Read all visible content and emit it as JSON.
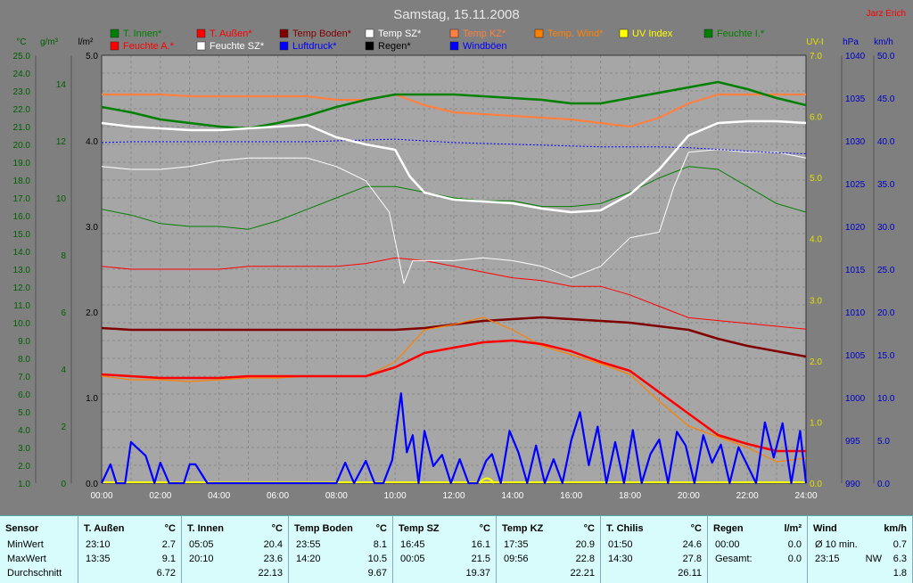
{
  "chart_data": {
    "type": "line",
    "title": "Samstag, 15.11.2008",
    "author": "Jarz Erich",
    "x_ticks": [
      "00:00",
      "02:00",
      "04:00",
      "06:00",
      "08:00",
      "10:00",
      "12:00",
      "14:00",
      "16:00",
      "18:00",
      "20:00",
      "22:00",
      "24:00"
    ],
    "x_range": [
      0,
      24
    ],
    "left_axes": [
      {
        "unit": "°C",
        "color": "#006000",
        "range": [
          1.0,
          25.0
        ],
        "ticks": [
          "1.0",
          "2.0",
          "3.0",
          "4.0",
          "5.0",
          "6.0",
          "7.0",
          "8.0",
          "9.0",
          "10.0",
          "11.0",
          "12.0",
          "13.0",
          "14.0",
          "15.0",
          "16.0",
          "17.0",
          "18.0",
          "19.0",
          "20.0",
          "21.0",
          "22.0",
          "23.0",
          "24.0",
          "25.0"
        ]
      },
      {
        "unit": "g/m³",
        "color": "#006000",
        "range": [
          0,
          15
        ],
        "ticks": [
          "0",
          "2",
          "4",
          "6",
          "8",
          "10",
          "12",
          "14"
        ]
      },
      {
        "unit": "l/m²",
        "color": "#000000",
        "range": [
          0.0,
          5.0
        ],
        "ticks": [
          "0.0",
          "1.0",
          "2.0",
          "3.0",
          "4.0",
          "5.0"
        ]
      }
    ],
    "right_axes": [
      {
        "unit": "UV-I",
        "color": "#e0e000",
        "range": [
          0.0,
          7.0
        ],
        "ticks": [
          "0.0",
          "1.0",
          "2.0",
          "3.0",
          "4.0",
          "5.0",
          "6.0",
          "7.0"
        ]
      },
      {
        "unit": "hPa",
        "color": "#0000c8",
        "range": [
          990,
          1040
        ],
        "ticks": [
          "990",
          "995",
          "1000",
          "1005",
          "1010",
          "1015",
          "1020",
          "1025",
          "1030",
          "1035",
          "1040"
        ]
      },
      {
        "unit": "km/h",
        "color": "#0000c8",
        "range": [
          0.0,
          50.0
        ],
        "ticks": [
          "0.0",
          "5.0",
          "10.0",
          "15.0",
          "20.0",
          "25.0",
          "30.0",
          "35.0",
          "40.0",
          "45.0",
          "50.0"
        ]
      }
    ],
    "legend": [
      {
        "name": "T. Innen*",
        "color": "#008000"
      },
      {
        "name": "T. Außen*",
        "color": "#ff0000"
      },
      {
        "name": "Temp Boden*",
        "color": "#800000"
      },
      {
        "name": "Temp SZ*",
        "color": "#ffffff"
      },
      {
        "name": "Temp KZ*",
        "color": "#ff8040"
      },
      {
        "name": "Temp. Wind*",
        "color": "#ff8000"
      },
      {
        "name": "UV Index",
        "color": "#ffff00"
      },
      {
        "name": "Feuchte I.*",
        "color": "#008000"
      },
      {
        "name": "Feuchte A.*",
        "color": "#ff0000"
      },
      {
        "name": "Feuchte SZ*",
        "color": "#ffffff"
      },
      {
        "name": "Luftdruck*",
        "color": "#0000ff"
      },
      {
        "name": "Regen*",
        "color": "#000000"
      },
      {
        "name": "Windböen",
        "color": "#0000ff"
      }
    ],
    "series": [
      {
        "name": "T. Innen*",
        "axis": "temp",
        "color": "#008000",
        "width": 2.5,
        "x": [
          0,
          1,
          2,
          3,
          4,
          5,
          6,
          7,
          8,
          9,
          10,
          11,
          12,
          13,
          14,
          15,
          16,
          17,
          18,
          19,
          20,
          21,
          22,
          23,
          24
        ],
        "y": [
          22.1,
          21.8,
          21.4,
          21.2,
          21.0,
          20.9,
          21.2,
          21.6,
          22.1,
          22.5,
          22.8,
          22.8,
          22.8,
          22.7,
          22.6,
          22.5,
          22.3,
          22.3,
          22.6,
          22.9,
          23.2,
          23.5,
          23.1,
          22.6,
          22.2
        ]
      },
      {
        "name": "T. Außen*",
        "axis": "temp",
        "color": "#ff0000",
        "width": 2.5,
        "x": [
          0,
          1,
          2,
          3,
          4,
          5,
          6,
          7,
          8,
          9,
          10,
          11,
          12,
          13,
          14,
          15,
          16,
          17,
          18,
          19,
          20,
          21,
          22,
          23,
          24
        ],
        "y": [
          7.1,
          7.0,
          6.9,
          6.9,
          6.9,
          7.0,
          7.0,
          7.0,
          7.0,
          7.0,
          7.5,
          8.3,
          8.6,
          8.9,
          9.0,
          8.8,
          8.4,
          7.8,
          7.3,
          6.1,
          4.9,
          3.7,
          3.2,
          2.8,
          2.8
        ]
      },
      {
        "name": "Temp Boden*",
        "axis": "temp",
        "color": "#800000",
        "width": 2.5,
        "x": [
          0,
          1,
          2,
          3,
          4,
          5,
          6,
          7,
          8,
          9,
          10,
          11,
          12,
          13,
          14,
          15,
          16,
          17,
          18,
          19,
          20,
          21,
          22,
          23,
          24
        ],
        "y": [
          9.7,
          9.6,
          9.6,
          9.6,
          9.6,
          9.6,
          9.6,
          9.6,
          9.6,
          9.6,
          9.6,
          9.7,
          9.9,
          10.1,
          10.2,
          10.3,
          10.2,
          10.1,
          10.0,
          9.8,
          9.6,
          9.1,
          8.7,
          8.4,
          8.1
        ]
      },
      {
        "name": "Temp SZ*",
        "axis": "temp",
        "color": "#ffffff",
        "width": 2.5,
        "x": [
          0,
          1,
          2,
          3,
          4,
          5,
          6,
          7,
          8,
          9,
          10,
          10.5,
          11,
          12,
          13,
          14,
          15,
          16,
          17,
          18,
          19,
          20,
          21,
          22,
          23,
          24
        ],
        "y": [
          21.2,
          21.0,
          20.9,
          20.8,
          20.8,
          20.9,
          21.0,
          21.1,
          20.4,
          20.0,
          19.7,
          18.2,
          17.3,
          16.9,
          16.8,
          16.7,
          16.4,
          16.2,
          16.3,
          17.2,
          18.6,
          20.5,
          21.2,
          21.3,
          21.3,
          21.2
        ]
      },
      {
        "name": "Temp KZ*",
        "axis": "temp",
        "color": "#ff8040",
        "width": 2.2,
        "x": [
          0,
          1,
          2,
          3,
          4,
          5,
          6,
          7,
          8,
          9,
          10,
          11,
          12,
          13,
          14,
          15,
          16,
          17,
          18,
          19,
          20,
          21,
          22,
          23,
          24
        ],
        "y": [
          22.8,
          22.8,
          22.8,
          22.7,
          22.7,
          22.7,
          22.7,
          22.7,
          22.5,
          22.5,
          22.8,
          22.2,
          21.8,
          21.7,
          21.6,
          21.5,
          21.4,
          21.2,
          21.0,
          21.5,
          22.3,
          22.8,
          22.8,
          22.8,
          22.8
        ]
      },
      {
        "name": "Temp. Wind*",
        "axis": "temp",
        "color": "#ff8000",
        "width": 1.2,
        "x": [
          0,
          1,
          2,
          3,
          4,
          5,
          6,
          7,
          8,
          9,
          10,
          11,
          12,
          13,
          14,
          15,
          16,
          17,
          18,
          19,
          20,
          21,
          22,
          23,
          24
        ],
        "y": [
          7.0,
          6.8,
          6.8,
          6.7,
          6.8,
          6.9,
          6.9,
          7.0,
          7.0,
          7.0,
          7.8,
          9.6,
          9.9,
          10.3,
          9.6,
          8.7,
          8.2,
          7.7,
          7.1,
          5.6,
          4.2,
          3.6,
          3.0,
          2.2,
          2.4
        ]
      },
      {
        "name": "Feuchte I.*",
        "axis": "hum",
        "color": "#008000",
        "width": 1,
        "x": [
          0,
          1,
          2,
          3,
          4,
          5,
          6,
          7,
          8,
          9,
          10,
          11,
          12,
          13,
          14,
          15,
          16,
          17,
          18,
          19,
          20,
          21,
          22,
          23,
          24
        ],
        "y": [
          9.6,
          9.4,
          9.1,
          9.0,
          9.0,
          8.9,
          9.2,
          9.6,
          10.0,
          10.4,
          10.4,
          10.2,
          10.0,
          9.9,
          9.9,
          9.7,
          9.7,
          9.8,
          10.2,
          10.7,
          11.1,
          11.0,
          10.4,
          9.8,
          9.5
        ]
      },
      {
        "name": "Feuchte A.*",
        "axis": "hum",
        "color": "#ff0000",
        "width": 1,
        "x": [
          0,
          1,
          2,
          3,
          4,
          5,
          6,
          7,
          8,
          9,
          10,
          11,
          12,
          13,
          14,
          15,
          16,
          17,
          18,
          19,
          20,
          21,
          22,
          23,
          24
        ],
        "y": [
          7.6,
          7.5,
          7.5,
          7.5,
          7.5,
          7.6,
          7.6,
          7.6,
          7.6,
          7.7,
          7.9,
          7.8,
          7.6,
          7.4,
          7.2,
          7.1,
          6.9,
          6.9,
          6.6,
          6.2,
          5.8,
          5.7,
          5.6,
          5.5,
          5.4
        ]
      },
      {
        "name": "Feuchte SZ*",
        "axis": "hum",
        "color": "#ffffff",
        "width": 1,
        "x": [
          0,
          1,
          2,
          3,
          4,
          5,
          6,
          7,
          8,
          9,
          9.8,
          10.3,
          10.6,
          11,
          12,
          13,
          14,
          15,
          16,
          17,
          18,
          19,
          19.5,
          20,
          21,
          22,
          23,
          24
        ],
        "y": [
          11.1,
          11.0,
          11.0,
          11.1,
          11.3,
          11.4,
          11.4,
          11.4,
          11.1,
          10.6,
          9.5,
          7.0,
          7.8,
          7.8,
          7.8,
          7.9,
          7.8,
          7.6,
          7.2,
          7.6,
          8.6,
          8.8,
          10.4,
          11.6,
          11.7,
          11.6,
          11.6,
          11.4
        ]
      },
      {
        "name": "Luftdruck*",
        "axis": "hpa",
        "color": "#0000ff",
        "width": 1,
        "dashed": true,
        "x": [
          0,
          1,
          2,
          3,
          4,
          5,
          6,
          7,
          8,
          9,
          10,
          11,
          12,
          13,
          14,
          15,
          16,
          17,
          18,
          19,
          20,
          21,
          22,
          23,
          24
        ],
        "y": [
          1029.8,
          1029.9,
          1029.9,
          1029.9,
          1029.9,
          1029.9,
          1029.9,
          1029.9,
          1030.0,
          1030.1,
          1030.2,
          1030.0,
          1029.8,
          1029.7,
          1029.6,
          1029.5,
          1029.4,
          1029.3,
          1029.3,
          1029.3,
          1029.2,
          1029.0,
          1028.8,
          1028.6,
          1028.5
        ]
      },
      {
        "name": "Windböen",
        "axis": "kmh",
        "color": "#0000ff",
        "width": 2.2,
        "x": [
          0,
          0.3,
          0.5,
          0.8,
          1,
          1.5,
          1.8,
          2,
          2.3,
          2.8,
          3,
          3.2,
          3.6,
          3.8,
          4,
          4.5,
          5,
          5.5,
          6,
          6.5,
          7,
          7.5,
          8,
          8.3,
          8.6,
          9,
          9.3,
          9.6,
          9.9,
          10.2,
          10.4,
          10.6,
          10.8,
          11,
          11.3,
          11.6,
          11.9,
          12.2,
          12.5,
          12.8,
          13.1,
          13.3,
          13.6,
          13.9,
          14.2,
          14.5,
          14.8,
          15.1,
          15.4,
          15.7,
          16,
          16.3,
          16.6,
          16.9,
          17.2,
          17.5,
          17.8,
          18.1,
          18.4,
          18.7,
          19,
          19.3,
          19.6,
          19.9,
          20.2,
          20.5,
          20.8,
          21.1,
          21.4,
          21.7,
          22,
          22.3,
          22.6,
          22.9,
          23.2,
          23.5,
          23.8,
          24
        ],
        "y": [
          0,
          2.2,
          0,
          0,
          4.8,
          3.2,
          0,
          2.4,
          0,
          0,
          2.2,
          2.2,
          0,
          0,
          0,
          0,
          0,
          0,
          0,
          0,
          0,
          0,
          0,
          2.4,
          0,
          2.6,
          0,
          0,
          2.7,
          10.5,
          3.6,
          5.6,
          0,
          6.1,
          2.0,
          3.3,
          0,
          2.8,
          0,
          0,
          2.6,
          3.4,
          0,
          6.1,
          3.6,
          0,
          4.4,
          0,
          2.8,
          0,
          5.0,
          8.3,
          2.1,
          6.6,
          0,
          4.8,
          0,
          6.2,
          0,
          3.4,
          5.1,
          0,
          6.0,
          4.4,
          0,
          5.6,
          2.4,
          4.5,
          0,
          4.2,
          2.1,
          0,
          7.1,
          3.0,
          7.0,
          0,
          6.1,
          0
        ]
      }
    ]
  },
  "stats": {
    "columns": [
      {
        "title": "Sensor",
        "unit": "",
        "rows": [
          [
            "MinWert",
            "",
            ""
          ],
          [
            "MaxWert",
            "",
            ""
          ],
          [
            "Durchschnitt",
            "",
            ""
          ]
        ]
      },
      {
        "title": "T. Außen",
        "unit": "°C",
        "rows": [
          [
            "23:10",
            "",
            "2.7"
          ],
          [
            "13:35",
            "",
            "9.1"
          ],
          [
            "",
            "",
            "6.72"
          ]
        ]
      },
      {
        "title": "T. Innen",
        "unit": "°C",
        "rows": [
          [
            "05:05",
            "",
            "20.4"
          ],
          [
            "20:10",
            "",
            "23.6"
          ],
          [
            "",
            "",
            "22.13"
          ]
        ]
      },
      {
        "title": "Temp Boden",
        "unit": "°C",
        "rows": [
          [
            "23:55",
            "",
            "8.1"
          ],
          [
            "14:20",
            "",
            "10.5"
          ],
          [
            "",
            "",
            "9.67"
          ]
        ]
      },
      {
        "title": "Temp SZ",
        "unit": "°C",
        "rows": [
          [
            "16:45",
            "",
            "16.1"
          ],
          [
            "00:05",
            "",
            "21.5"
          ],
          [
            "",
            "",
            "19.37"
          ]
        ]
      },
      {
        "title": "Temp KZ",
        "unit": "°C",
        "rows": [
          [
            "17:35",
            "",
            "20.9"
          ],
          [
            "09:56",
            "",
            "22.8"
          ],
          [
            "",
            "",
            "22.21"
          ]
        ]
      },
      {
        "title": "T. Chilis",
        "unit": "°C",
        "rows": [
          [
            "01:50",
            "",
            "24.6"
          ],
          [
            "14:30",
            "",
            "27.8"
          ],
          [
            "",
            "",
            "26.11"
          ]
        ]
      },
      {
        "title": "Regen",
        "unit": "l/m²",
        "rows": [
          [
            "00:00",
            "",
            "0.0"
          ],
          [
            "Gesamt:",
            "",
            "0.0"
          ],
          [
            "",
            "",
            ""
          ]
        ]
      },
      {
        "title": "Wind",
        "unit": "km/h",
        "rows": [
          [
            "Ø 10 min.",
            "",
            "0.7"
          ],
          [
            "23:15",
            "NW",
            "6.3"
          ],
          [
            "",
            "",
            "1.8"
          ]
        ]
      }
    ]
  }
}
